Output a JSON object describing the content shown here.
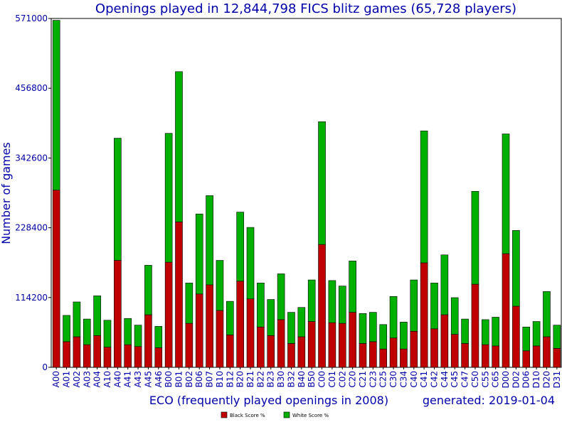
{
  "chart_data": {
    "type": "bar",
    "stacked": true,
    "title": "Openings played in 12,844,798 FICS blitz games (65,728 players)",
    "xlabel": "ECO (frequently played openings in 2008)",
    "ylabel": "Number of games",
    "footer_note": "generated: 2019-01-04",
    "ylim": [
      0,
      571000
    ],
    "yticks": [
      "0",
      "114200",
      "228400",
      "342600",
      "456800",
      "571000"
    ],
    "grid": false,
    "legend_placement": "bottom-center",
    "categories": [
      "A00",
      "A01",
      "A02",
      "A03",
      "A04",
      "A10",
      "A40",
      "A41",
      "A43",
      "A45",
      "A46",
      "B00",
      "B01",
      "B02",
      "B06",
      "B07",
      "B10",
      "B12",
      "B20",
      "B21",
      "B22",
      "B23",
      "B30",
      "B32",
      "B40",
      "B50",
      "C00",
      "C01",
      "C02",
      "C20",
      "C21",
      "C23",
      "C25",
      "C30",
      "C34",
      "C40",
      "C41",
      "C42",
      "C44",
      "C45",
      "C47",
      "C50",
      "C55",
      "C65",
      "D00",
      "D02",
      "D06",
      "D10",
      "D20",
      "D31"
    ],
    "series": [
      {
        "name": "Black Score %",
        "color": "#c00000",
        "values": [
          290000,
          42000,
          50000,
          37000,
          52000,
          33000,
          175000,
          37000,
          34000,
          86000,
          32000,
          172000,
          238000,
          72000,
          120000,
          135000,
          93000,
          53000,
          141000,
          112000,
          66000,
          52000,
          78000,
          39000,
          50000,
          75000,
          201000,
          73000,
          72000,
          90000,
          39000,
          42000,
          30000,
          48000,
          30000,
          59000,
          171000,
          63000,
          86000,
          54000,
          39000,
          136000,
          37000,
          35000,
          186000,
          100000,
          27000,
          35000,
          50000,
          31000
        ]
      },
      {
        "name": "White Score %",
        "color": "#00b000",
        "values": [
          278000,
          43000,
          57000,
          42000,
          65000,
          44000,
          200000,
          43000,
          35000,
          81000,
          35000,
          211000,
          246000,
          66000,
          131000,
          146000,
          82000,
          55000,
          113000,
          117000,
          72000,
          59000,
          75000,
          51000,
          48000,
          68000,
          201000,
          69000,
          61000,
          84000,
          49000,
          48000,
          40000,
          68000,
          44000,
          84000,
          216000,
          75000,
          98000,
          60000,
          40000,
          152000,
          41000,
          47000,
          196000,
          124000,
          39000,
          40000,
          74000,
          38000
        ]
      }
    ]
  }
}
